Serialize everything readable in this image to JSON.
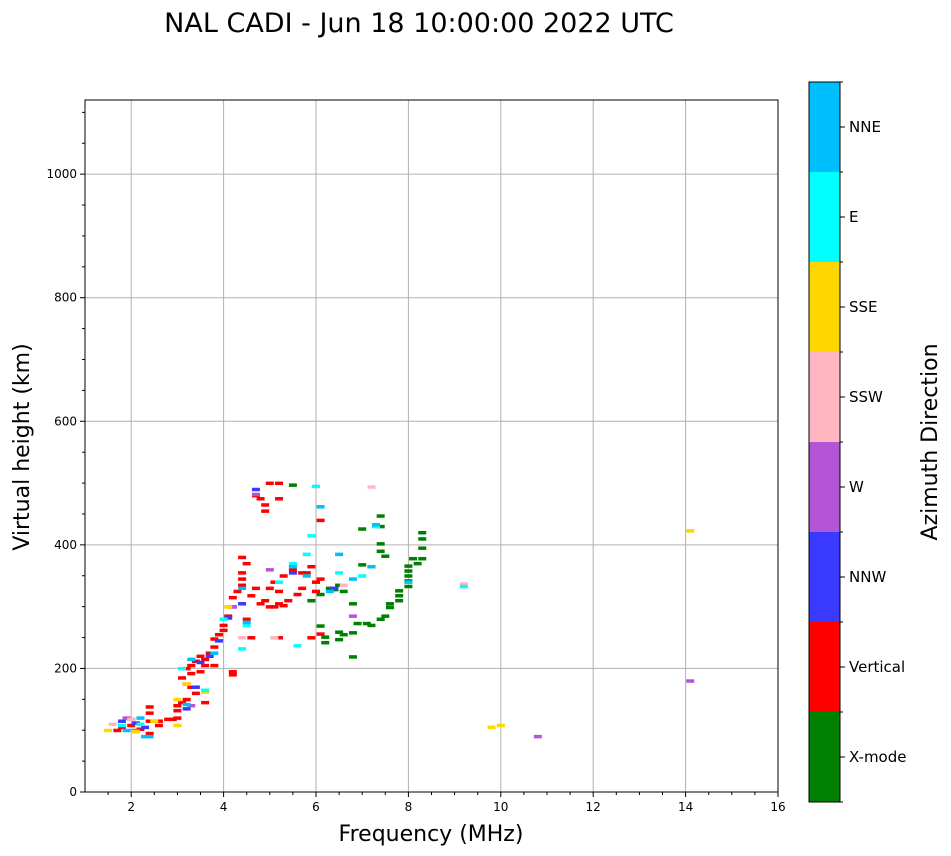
{
  "chart_data": {
    "type": "scatter",
    "title": "NAL CADI - Jun 18 10:00:00 2022 UTC",
    "xlabel": "Frequency (MHz)",
    "ylabel": "Virtual height (km)",
    "xlim": [
      1,
      16
    ],
    "ylim": [
      0,
      1120
    ],
    "xticks": [
      2,
      4,
      6,
      8,
      10,
      12,
      14,
      16
    ],
    "xtick_labels": [
      "2",
      "4",
      "6",
      "8",
      "10",
      "12",
      "14",
      "16"
    ],
    "yticks": [
      0,
      200,
      400,
      600,
      800,
      1000
    ],
    "ytick_labels": [
      "0",
      "200",
      "400",
      "600",
      "800",
      "1000"
    ],
    "grid": true,
    "colorbar": {
      "label": "Azimuth Direction",
      "categories": [
        "X-mode",
        "Vertical",
        "NNW",
        "W",
        "SSW",
        "SSE",
        "E",
        "NNE"
      ],
      "colors": [
        "#008000",
        "#ff0000",
        "#3a3aff",
        "#b455d6",
        "#ffb6c1",
        "#ffd700",
        "#00ffff",
        "#00bfff"
      ]
    },
    "series": [
      {
        "name": "X-mode",
        "color": "#008000",
        "points": [
          [
            5.5,
            497
          ],
          [
            6.6,
            255
          ],
          [
            6.5,
            247
          ],
          [
            6.1,
            269
          ],
          [
            6.2,
            251
          ],
          [
            6.2,
            242
          ],
          [
            6.5,
            259
          ],
          [
            6.8,
            219
          ],
          [
            6.8,
            258
          ],
          [
            6.9,
            273
          ],
          [
            7.1,
            273
          ],
          [
            7.2,
            270
          ],
          [
            7.4,
            280
          ],
          [
            7.5,
            285
          ],
          [
            7.6,
            299
          ],
          [
            7.6,
            305
          ],
          [
            7.8,
            310
          ],
          [
            7.8,
            318
          ],
          [
            7.8,
            326
          ],
          [
            8.0,
            333
          ],
          [
            8.0,
            342
          ],
          [
            8.0,
            350
          ],
          [
            8.0,
            358
          ],
          [
            8.0,
            366
          ],
          [
            8.2,
            370
          ],
          [
            8.3,
            378
          ],
          [
            8.3,
            395
          ],
          [
            8.3,
            410
          ],
          [
            8.3,
            420
          ],
          [
            8.1,
            378
          ],
          [
            7.5,
            382
          ],
          [
            7.4,
            390
          ],
          [
            7.4,
            402
          ],
          [
            7.4,
            430
          ],
          [
            7.4,
            447
          ],
          [
            7.0,
            426
          ],
          [
            7.0,
            368
          ],
          [
            7.2,
            365
          ],
          [
            6.5,
            335
          ],
          [
            6.6,
            325
          ],
          [
            6.8,
            305
          ],
          [
            6.4,
            328
          ],
          [
            6.3,
            330
          ],
          [
            6.1,
            320
          ],
          [
            5.9,
            310
          ]
        ]
      },
      {
        "name": "Vertical",
        "color": "#ff0000",
        "points": [
          [
            2.4,
            138
          ],
          [
            2.4,
            128
          ],
          [
            2.6,
            115
          ],
          [
            2.8,
            118
          ],
          [
            3.0,
            120
          ],
          [
            3.0,
            132
          ],
          [
            3.1,
            145
          ],
          [
            3.2,
            150
          ],
          [
            3.2,
            175
          ],
          [
            3.3,
            192
          ],
          [
            3.3,
            205
          ],
          [
            3.4,
            212
          ],
          [
            3.5,
            220
          ],
          [
            3.6,
            205
          ],
          [
            3.6,
            215
          ],
          [
            3.7,
            225
          ],
          [
            3.8,
            235
          ],
          [
            3.8,
            248
          ],
          [
            3.9,
            255
          ],
          [
            4.0,
            262
          ],
          [
            4.0,
            270
          ],
          [
            4.1,
            285
          ],
          [
            4.2,
            300
          ],
          [
            4.2,
            315
          ],
          [
            4.3,
            325
          ],
          [
            4.4,
            335
          ],
          [
            4.4,
            345
          ],
          [
            4.4,
            355
          ],
          [
            4.5,
            370
          ],
          [
            4.4,
            380
          ],
          [
            4.6,
            318
          ],
          [
            4.7,
            330
          ],
          [
            4.8,
            305
          ],
          [
            4.9,
            310
          ],
          [
            5.0,
            300
          ],
          [
            5.1,
            300
          ],
          [
            5.2,
            305
          ],
          [
            5.3,
            302
          ],
          [
            5.4,
            310
          ],
          [
            5.6,
            320
          ],
          [
            5.7,
            355
          ],
          [
            5.8,
            355
          ],
          [
            5.9,
            365
          ],
          [
            5.5,
            360
          ],
          [
            5.3,
            350
          ],
          [
            5.1,
            340
          ],
          [
            5.0,
            330
          ],
          [
            5.2,
            325
          ],
          [
            5.7,
            330
          ],
          [
            6.0,
            340
          ],
          [
            6.0,
            325
          ],
          [
            6.1,
            345
          ],
          [
            6.1,
            440
          ],
          [
            5.9,
            250
          ],
          [
            6.1,
            256
          ],
          [
            5.2,
            250
          ],
          [
            4.7,
            480
          ],
          [
            4.8,
            475
          ],
          [
            4.9,
            465
          ],
          [
            4.9,
            455
          ],
          [
            5.0,
            500
          ],
          [
            5.2,
            500
          ],
          [
            5.2,
            475
          ],
          [
            4.6,
            250
          ],
          [
            4.5,
            280
          ],
          [
            4.2,
            195
          ],
          [
            4.2,
            190
          ],
          [
            3.8,
            205
          ],
          [
            3.5,
            195
          ],
          [
            3.4,
            160
          ],
          [
            3.6,
            145
          ],
          [
            3.3,
            170
          ],
          [
            3.1,
            185
          ],
          [
            3.2,
            200
          ],
          [
            3.0,
            140
          ],
          [
            2.9,
            118
          ],
          [
            2.4,
            115
          ],
          [
            2.6,
            108
          ],
          [
            2.2,
            102
          ],
          [
            2.0,
            108
          ],
          [
            1.8,
            105
          ],
          [
            1.7,
            100
          ],
          [
            2.4,
            95
          ]
        ]
      },
      {
        "name": "NNW",
        "color": "#3a3aff",
        "points": [
          [
            1.8,
            115
          ],
          [
            2.0,
            118
          ],
          [
            2.3,
            105
          ],
          [
            3.2,
            135
          ],
          [
            3.4,
            170
          ],
          [
            3.5,
            210
          ],
          [
            3.7,
            220
          ],
          [
            3.9,
            245
          ],
          [
            4.1,
            282
          ],
          [
            4.4,
            305
          ],
          [
            4.7,
            490
          ],
          [
            5.5,
            355
          ],
          [
            6.4,
            330
          ],
          [
            2.1,
            112
          ]
        ]
      },
      {
        "name": "W",
        "color": "#b455d6",
        "points": [
          [
            4.7,
            482
          ],
          [
            6.8,
            285
          ],
          [
            10.8,
            90
          ],
          [
            14.1,
            180
          ],
          [
            1.9,
            120
          ],
          [
            2.1,
            100
          ],
          [
            3.3,
            140
          ],
          [
            4.2,
            300
          ],
          [
            5.0,
            360
          ]
        ]
      },
      {
        "name": "SSW",
        "color": "#ffb6c1",
        "points": [
          [
            7.2,
            494
          ],
          [
            9.2,
            337
          ],
          [
            4.4,
            250
          ],
          [
            5.1,
            250
          ],
          [
            6.6,
            335
          ],
          [
            2.0,
            118
          ],
          [
            1.6,
            110
          ]
        ]
      },
      {
        "name": "SSE",
        "color": "#ffd700",
        "points": [
          [
            14.1,
            423
          ],
          [
            9.8,
            105
          ],
          [
            10.0,
            108
          ],
          [
            3.0,
            108
          ],
          [
            2.5,
            115
          ],
          [
            3.2,
            175
          ],
          [
            3.0,
            150
          ],
          [
            1.5,
            100
          ],
          [
            2.1,
            98
          ],
          [
            4.1,
            300
          ],
          [
            3.6,
            162
          ]
        ]
      },
      {
        "name": "E",
        "color": "#00ffff",
        "points": [
          [
            3.6,
            165
          ],
          [
            4.4,
            232
          ],
          [
            4.5,
            270
          ],
          [
            5.2,
            340
          ],
          [
            5.5,
            370
          ],
          [
            5.8,
            385
          ],
          [
            5.9,
            415
          ],
          [
            6.0,
            495
          ],
          [
            6.5,
            355
          ],
          [
            7.0,
            350
          ],
          [
            7.3,
            430
          ],
          [
            9.2,
            333
          ],
          [
            5.6,
            237
          ],
          [
            2.2,
            110
          ],
          [
            1.8,
            108
          ],
          [
            3.1,
            200
          ],
          [
            4.0,
            280
          ]
        ]
      },
      {
        "name": "NNE",
        "color": "#00bfff",
        "points": [
          [
            6.1,
            462
          ],
          [
            6.5,
            385
          ],
          [
            6.8,
            345
          ],
          [
            7.2,
            365
          ],
          [
            7.3,
            433
          ],
          [
            8.0,
            340
          ],
          [
            5.5,
            365
          ],
          [
            5.8,
            350
          ],
          [
            6.3,
            325
          ],
          [
            4.4,
            330
          ],
          [
            3.8,
            225
          ],
          [
            3.3,
            215
          ],
          [
            2.4,
            90
          ],
          [
            2.3,
            90
          ],
          [
            1.9,
            100
          ],
          [
            2.2,
            120
          ],
          [
            3.2,
            142
          ],
          [
            4.5,
            275
          ]
        ]
      }
    ]
  }
}
